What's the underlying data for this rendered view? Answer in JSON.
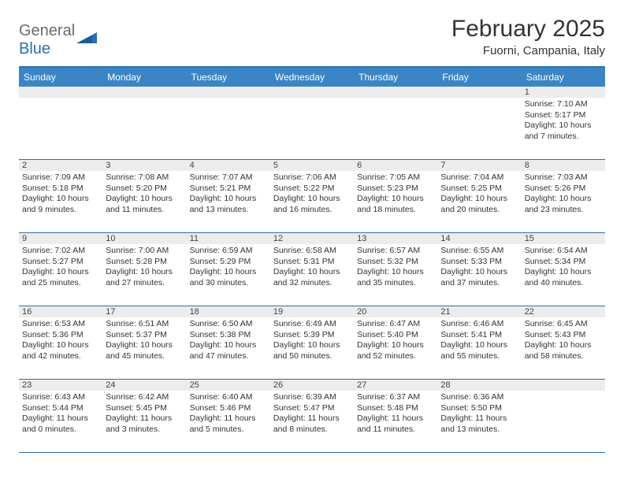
{
  "logo": {
    "part1": "General",
    "part2": "Blue"
  },
  "title": "February 2025",
  "location": "Fuorni, Campania, Italy",
  "colors": {
    "header_bg": "#3b85c6",
    "header_text": "#ffffff",
    "border": "#2b6fb0",
    "daynum_bg": "#ececec",
    "text": "#333333",
    "logo_gray": "#6b6b6b",
    "logo_blue": "#2b6fb0",
    "page_bg": "#ffffff"
  },
  "typography": {
    "title_fontsize": 30,
    "location_fontsize": 15,
    "header_fontsize": 12,
    "cell_fontsize": 10.5,
    "daynum_fontsize": 11,
    "logo_fontsize": 20
  },
  "days": [
    "Sunday",
    "Monday",
    "Tuesday",
    "Wednesday",
    "Thursday",
    "Friday",
    "Saturday"
  ],
  "weeks": [
    [
      null,
      null,
      null,
      null,
      null,
      null,
      {
        "n": "1",
        "sr": "Sunrise: 7:10 AM",
        "ss": "Sunset: 5:17 PM",
        "dl": "Daylight: 10 hours and 7 minutes."
      }
    ],
    [
      {
        "n": "2",
        "sr": "Sunrise: 7:09 AM",
        "ss": "Sunset: 5:18 PM",
        "dl": "Daylight: 10 hours and 9 minutes."
      },
      {
        "n": "3",
        "sr": "Sunrise: 7:08 AM",
        "ss": "Sunset: 5:20 PM",
        "dl": "Daylight: 10 hours and 11 minutes."
      },
      {
        "n": "4",
        "sr": "Sunrise: 7:07 AM",
        "ss": "Sunset: 5:21 PM",
        "dl": "Daylight: 10 hours and 13 minutes."
      },
      {
        "n": "5",
        "sr": "Sunrise: 7:06 AM",
        "ss": "Sunset: 5:22 PM",
        "dl": "Daylight: 10 hours and 16 minutes."
      },
      {
        "n": "6",
        "sr": "Sunrise: 7:05 AM",
        "ss": "Sunset: 5:23 PM",
        "dl": "Daylight: 10 hours and 18 minutes."
      },
      {
        "n": "7",
        "sr": "Sunrise: 7:04 AM",
        "ss": "Sunset: 5:25 PM",
        "dl": "Daylight: 10 hours and 20 minutes."
      },
      {
        "n": "8",
        "sr": "Sunrise: 7:03 AM",
        "ss": "Sunset: 5:26 PM",
        "dl": "Daylight: 10 hours and 23 minutes."
      }
    ],
    [
      {
        "n": "9",
        "sr": "Sunrise: 7:02 AM",
        "ss": "Sunset: 5:27 PM",
        "dl": "Daylight: 10 hours and 25 minutes."
      },
      {
        "n": "10",
        "sr": "Sunrise: 7:00 AM",
        "ss": "Sunset: 5:28 PM",
        "dl": "Daylight: 10 hours and 27 minutes."
      },
      {
        "n": "11",
        "sr": "Sunrise: 6:59 AM",
        "ss": "Sunset: 5:29 PM",
        "dl": "Daylight: 10 hours and 30 minutes."
      },
      {
        "n": "12",
        "sr": "Sunrise: 6:58 AM",
        "ss": "Sunset: 5:31 PM",
        "dl": "Daylight: 10 hours and 32 minutes."
      },
      {
        "n": "13",
        "sr": "Sunrise: 6:57 AM",
        "ss": "Sunset: 5:32 PM",
        "dl": "Daylight: 10 hours and 35 minutes."
      },
      {
        "n": "14",
        "sr": "Sunrise: 6:55 AM",
        "ss": "Sunset: 5:33 PM",
        "dl": "Daylight: 10 hours and 37 minutes."
      },
      {
        "n": "15",
        "sr": "Sunrise: 6:54 AM",
        "ss": "Sunset: 5:34 PM",
        "dl": "Daylight: 10 hours and 40 minutes."
      }
    ],
    [
      {
        "n": "16",
        "sr": "Sunrise: 6:53 AM",
        "ss": "Sunset: 5:36 PM",
        "dl": "Daylight: 10 hours and 42 minutes."
      },
      {
        "n": "17",
        "sr": "Sunrise: 6:51 AM",
        "ss": "Sunset: 5:37 PM",
        "dl": "Daylight: 10 hours and 45 minutes."
      },
      {
        "n": "18",
        "sr": "Sunrise: 6:50 AM",
        "ss": "Sunset: 5:38 PM",
        "dl": "Daylight: 10 hours and 47 minutes."
      },
      {
        "n": "19",
        "sr": "Sunrise: 6:49 AM",
        "ss": "Sunset: 5:39 PM",
        "dl": "Daylight: 10 hours and 50 minutes."
      },
      {
        "n": "20",
        "sr": "Sunrise: 6:47 AM",
        "ss": "Sunset: 5:40 PM",
        "dl": "Daylight: 10 hours and 52 minutes."
      },
      {
        "n": "21",
        "sr": "Sunrise: 6:46 AM",
        "ss": "Sunset: 5:41 PM",
        "dl": "Daylight: 10 hours and 55 minutes."
      },
      {
        "n": "22",
        "sr": "Sunrise: 6:45 AM",
        "ss": "Sunset: 5:43 PM",
        "dl": "Daylight: 10 hours and 58 minutes."
      }
    ],
    [
      {
        "n": "23",
        "sr": "Sunrise: 6:43 AM",
        "ss": "Sunset: 5:44 PM",
        "dl": "Daylight: 11 hours and 0 minutes."
      },
      {
        "n": "24",
        "sr": "Sunrise: 6:42 AM",
        "ss": "Sunset: 5:45 PM",
        "dl": "Daylight: 11 hours and 3 minutes."
      },
      {
        "n": "25",
        "sr": "Sunrise: 6:40 AM",
        "ss": "Sunset: 5:46 PM",
        "dl": "Daylight: 11 hours and 5 minutes."
      },
      {
        "n": "26",
        "sr": "Sunrise: 6:39 AM",
        "ss": "Sunset: 5:47 PM",
        "dl": "Daylight: 11 hours and 8 minutes."
      },
      {
        "n": "27",
        "sr": "Sunrise: 6:37 AM",
        "ss": "Sunset: 5:48 PM",
        "dl": "Daylight: 11 hours and 11 minutes."
      },
      {
        "n": "28",
        "sr": "Sunrise: 6:36 AM",
        "ss": "Sunset: 5:50 PM",
        "dl": "Daylight: 11 hours and 13 minutes."
      },
      null
    ]
  ]
}
